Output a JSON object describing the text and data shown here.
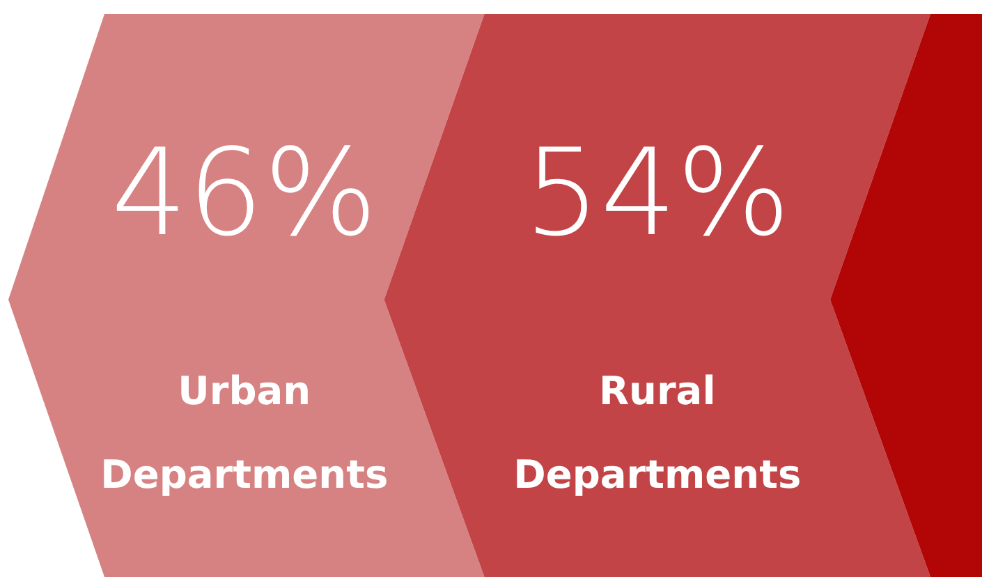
{
  "chart_data": {
    "type": "other",
    "categories": [
      "Urban Departments",
      "Rural Departments"
    ],
    "values": [
      46,
      54
    ],
    "value_labels": [
      "46%",
      "54%"
    ],
    "colors": [
      "#d78282",
      "#c24447"
    ]
  }
}
